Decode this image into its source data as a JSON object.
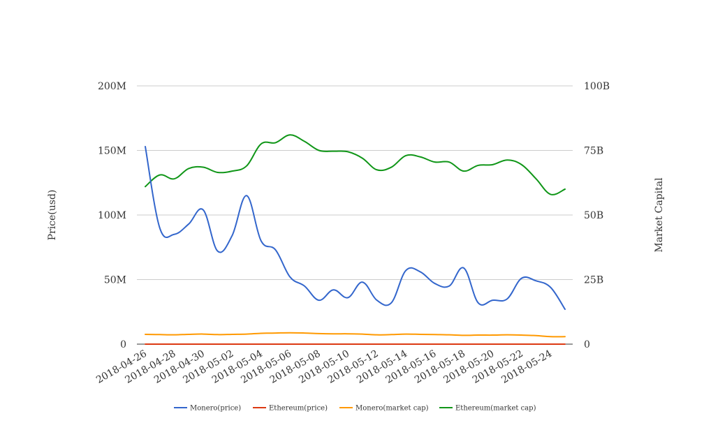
{
  "chart_data": {
    "type": "line",
    "y_left": {
      "label": "Price(usd)",
      "ticks": [
        "0",
        "50M",
        "100M",
        "150M",
        "200M"
      ],
      "range": [
        0,
        200000000
      ]
    },
    "y_right": {
      "label": "Market Capital",
      "ticks": [
        "0",
        "25B",
        "50B",
        "75B",
        "100B"
      ],
      "range": [
        0,
        100000000000
      ]
    },
    "x_tick_labels": [
      "2018-04-26",
      "2018-04-28",
      "2018-04-30",
      "2018-05-02",
      "2018-05-04",
      "2018-05-06",
      "2018-05-08",
      "2018-05-10",
      "2018-05-12",
      "2018-05-14",
      "2018-05-16",
      "2018-05-18",
      "2018-05-20",
      "2018-05-22",
      "2018-05-24"
    ],
    "x": [
      "2018-04-26",
      "2018-04-27",
      "2018-04-28",
      "2018-04-29",
      "2018-04-30",
      "2018-05-01",
      "2018-05-02",
      "2018-05-03",
      "2018-05-04",
      "2018-05-05",
      "2018-05-06",
      "2018-05-07",
      "2018-05-08",
      "2018-05-09",
      "2018-05-10",
      "2018-05-11",
      "2018-05-12",
      "2018-05-13",
      "2018-05-14",
      "2018-05-15",
      "2018-05-16",
      "2018-05-17",
      "2018-05-18",
      "2018-05-19",
      "2018-05-20",
      "2018-05-21",
      "2018-05-22",
      "2018-05-23",
      "2018-05-24",
      "2018-05-25"
    ],
    "grid": true,
    "legend_position": "bottom",
    "series": [
      {
        "name": "Monero(price)",
        "axis": "left",
        "color": "#3366cc",
        "values": [
          153000000,
          90000000,
          85000000,
          93000000,
          104000000,
          72000000,
          84000000,
          115000000,
          80000000,
          73000000,
          52000000,
          45000000,
          34000000,
          42000000,
          36000000,
          48000000,
          34000000,
          32000000,
          57000000,
          56000000,
          47000000,
          45000000,
          59000000,
          32000000,
          34000000,
          35000000,
          51000000,
          49000000,
          44000000,
          27000000
        ]
      },
      {
        "name": "Ethereum(price)",
        "axis": "left",
        "color": "#dc3912",
        "values": [
          650,
          660,
          640,
          680,
          690,
          670,
          680,
          690,
          780,
          790,
          820,
          800,
          760,
          750,
          750,
          730,
          690,
          700,
          740,
          730,
          720,
          710,
          680,
          700,
          700,
          720,
          710,
          650,
          590,
          600
        ]
      },
      {
        "name": "Monero(market cap)",
        "axis": "right",
        "color": "#ff9900",
        "values": [
          3800000000,
          3700000000,
          3600000000,
          3800000000,
          3900000000,
          3700000000,
          3800000000,
          3900000000,
          4200000000,
          4300000000,
          4400000000,
          4300000000,
          4100000000,
          4000000000,
          4000000000,
          3900000000,
          3600000000,
          3700000000,
          3900000000,
          3800000000,
          3700000000,
          3600000000,
          3400000000,
          3500000000,
          3500000000,
          3600000000,
          3500000000,
          3300000000,
          2900000000,
          2900000000
        ]
      },
      {
        "name": "Ethereum(market cap)",
        "axis": "right",
        "color": "#109618",
        "values": [
          61000000000,
          65500000000,
          64000000000,
          68000000000,
          68500000000,
          66500000000,
          67000000000,
          69000000000,
          77500000000,
          78000000000,
          81000000000,
          78500000000,
          75000000000,
          74700000000,
          74500000000,
          72000000000,
          67500000000,
          68500000000,
          73000000000,
          72500000000,
          70500000000,
          70500000000,
          67000000000,
          69200000000,
          69500000000,
          71300000000,
          69500000000,
          64000000000,
          58000000000,
          60000000000
        ]
      }
    ]
  }
}
